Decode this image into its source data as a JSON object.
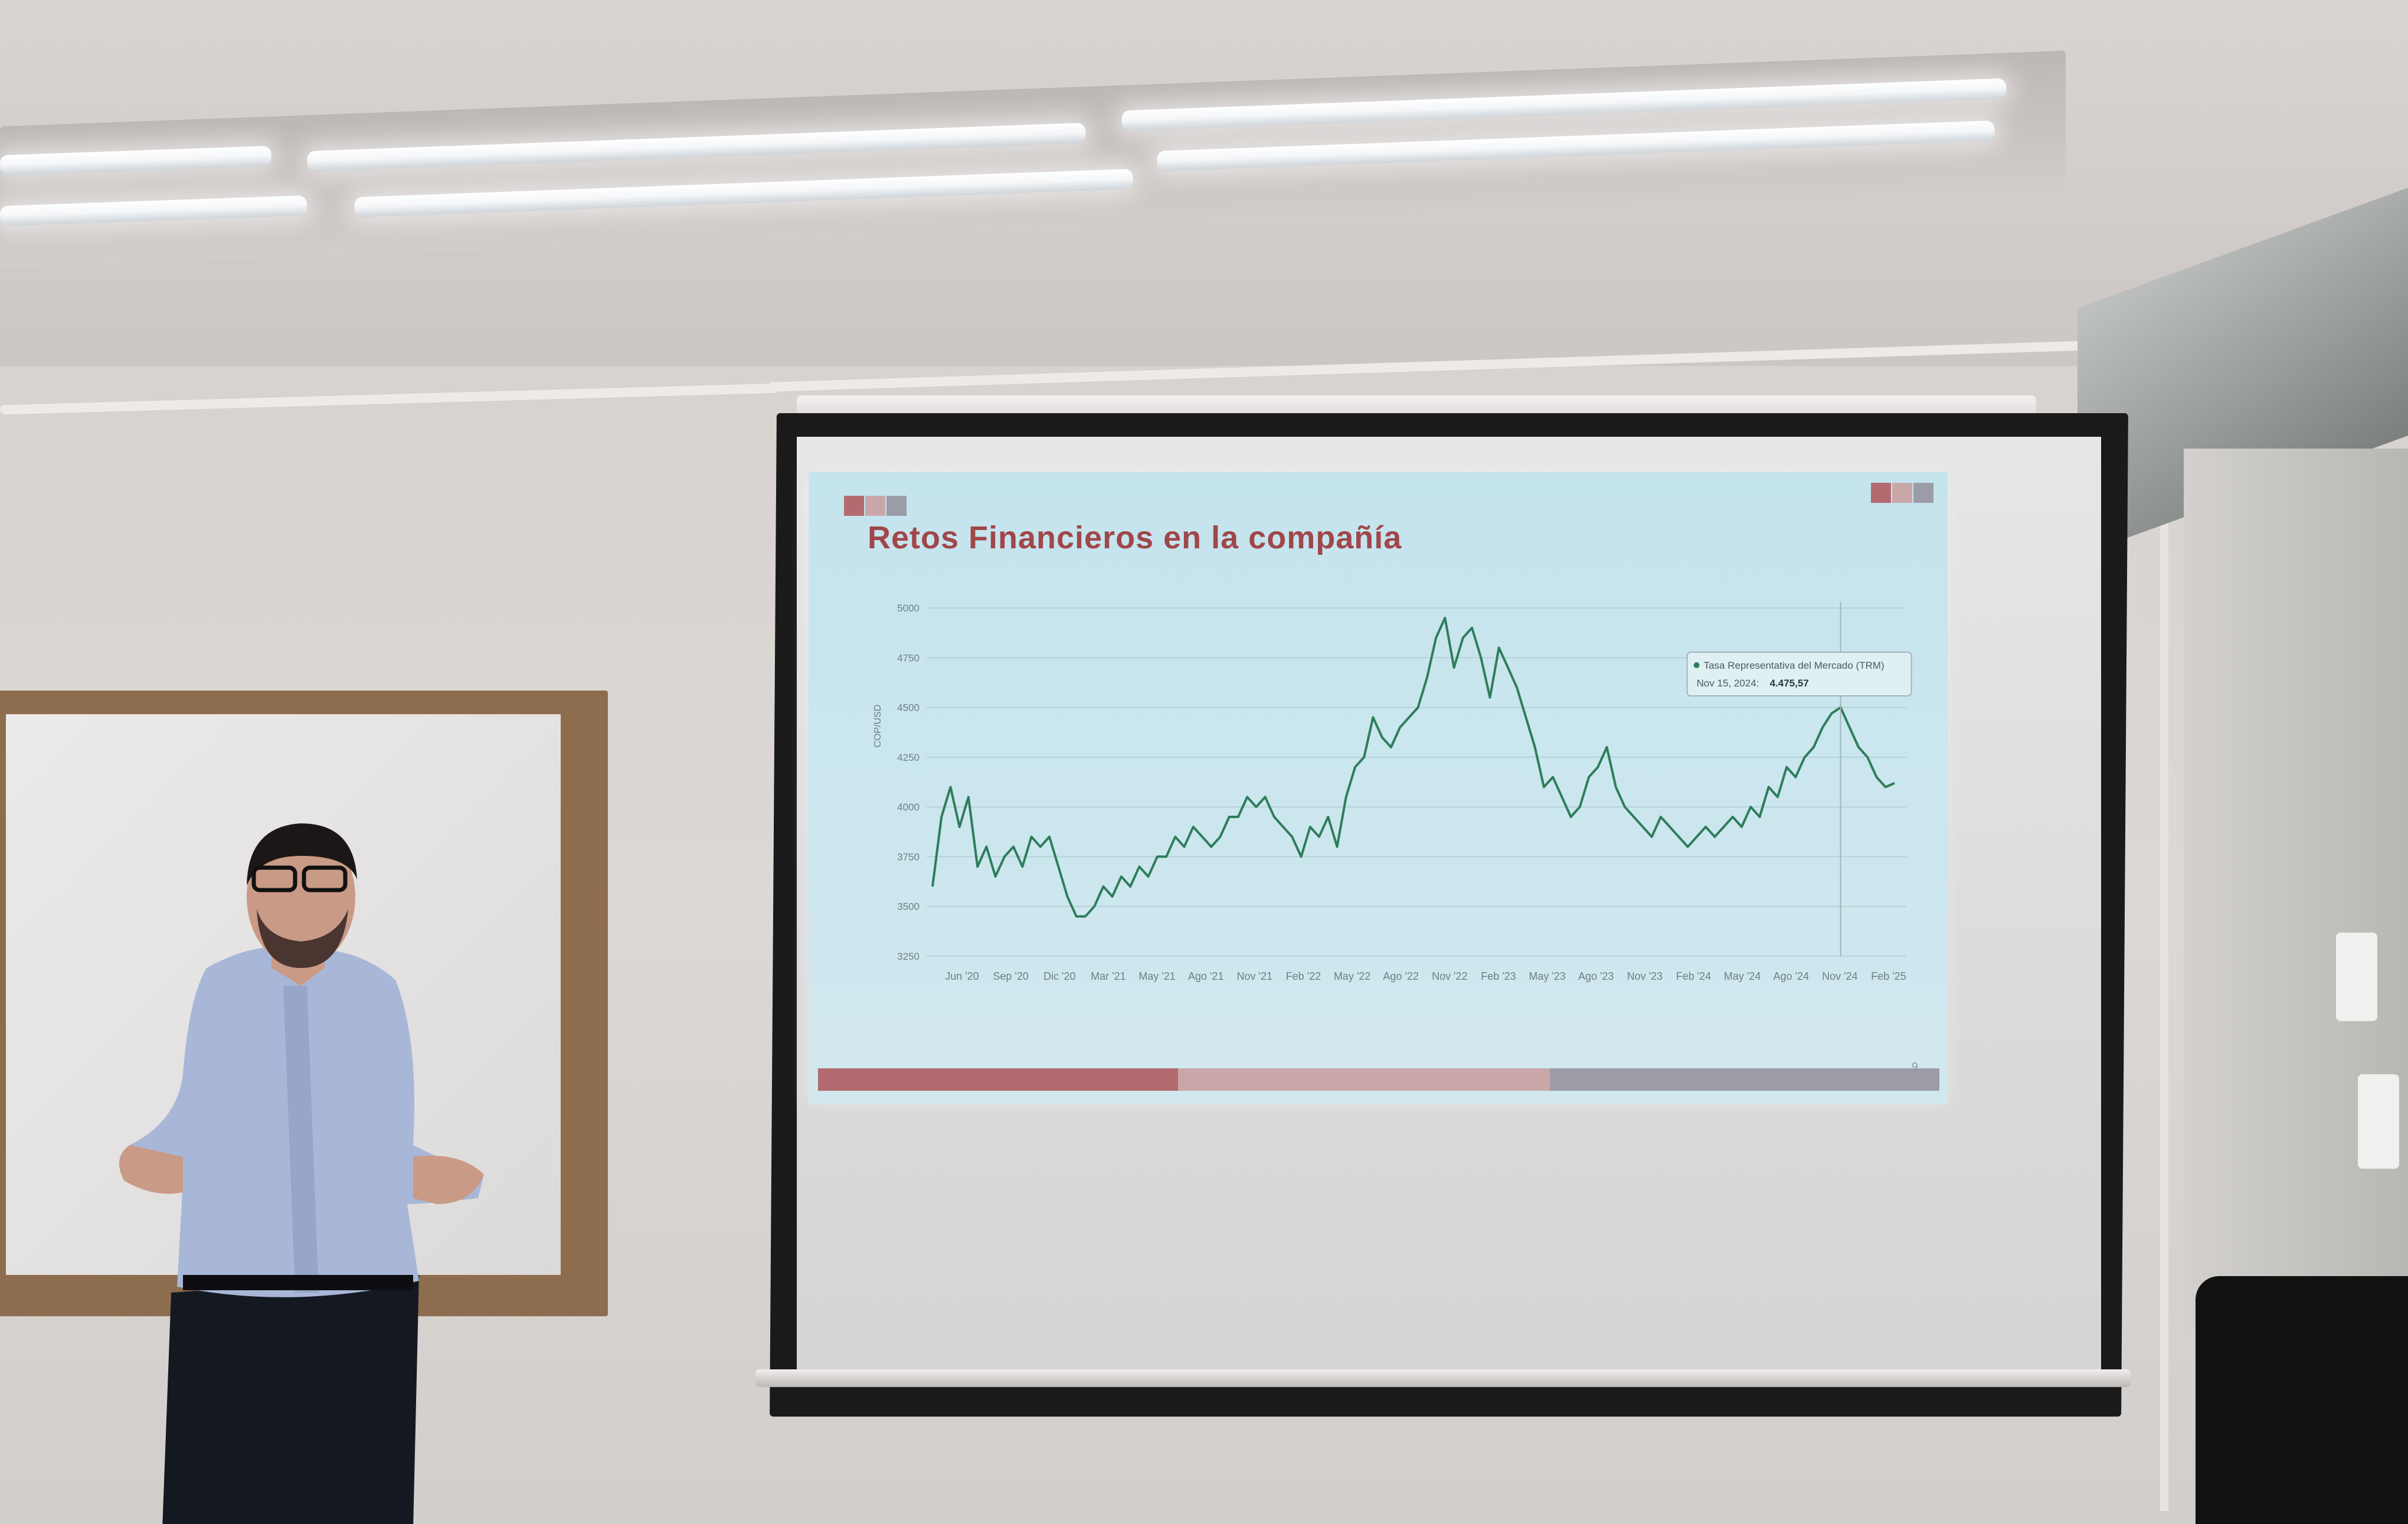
{
  "slide": {
    "title": "Retos Financieros en la compañía",
    "page_number": "9",
    "accent_colors": [
      "#b36b6f",
      "#c9a7a9",
      "#9b9ca6"
    ]
  },
  "chart_data": {
    "type": "line",
    "ylabel": "COP/USD",
    "ylim": [
      3250,
      5000
    ],
    "yticks": [
      3250,
      3500,
      3750,
      4000,
      4250,
      4500,
      4750,
      5000
    ],
    "xticks": [
      "Jun '20",
      "Sep '20",
      "Dic '20",
      "Mar '21",
      "May '21",
      "Ago '21",
      "Nov '21",
      "Feb '22",
      "May '22",
      "Ago '22",
      "Nov '22",
      "Feb '23",
      "May '23",
      "Ago '23",
      "Nov '23",
      "Feb '24",
      "May '24",
      "Ago '24",
      "Nov '24",
      "Feb '25"
    ],
    "line_color": "#2e7d5b",
    "series": [
      {
        "values": [
          3600,
          3950,
          4100,
          3900,
          4050,
          3700,
          3800,
          3650,
          3750,
          3800,
          3700,
          3850,
          3800,
          3850,
          3700,
          3550,
          3450,
          3450,
          3500,
          3600,
          3550,
          3650,
          3600,
          3700,
          3650,
          3750,
          3750,
          3850,
          3800,
          3900,
          3850,
          3800,
          3850,
          3950,
          3950,
          4050,
          4000,
          4050,
          3950,
          3900,
          3850,
          3750,
          3900,
          3850,
          3950,
          3800,
          4050,
          4200,
          4250,
          4450,
          4350,
          4300,
          4400,
          4450,
          4500,
          4650,
          4850,
          4950,
          4700,
          4850,
          4900,
          4750,
          4550,
          4800,
          4700,
          4600,
          4450,
          4300,
          4100,
          4150,
          4050,
          3950,
          4000,
          4150,
          4200,
          4300,
          4100,
          4000,
          3950,
          3900,
          3850,
          3950,
          3900,
          3850,
          3800,
          3850,
          3900,
          3850,
          3900,
          3950,
          3900,
          4000,
          3950,
          4100,
          4050,
          4200,
          4150,
          4250,
          4300,
          4400,
          4470,
          4500,
          4400,
          4300,
          4250,
          4150,
          4100,
          4120
        ]
      }
    ],
    "tooltip": {
      "series_name": "Tasa Representativa del Mercado (TRM)",
      "date": "Nov 15, 2024:",
      "value": "4.475,57",
      "index": 101
    }
  }
}
